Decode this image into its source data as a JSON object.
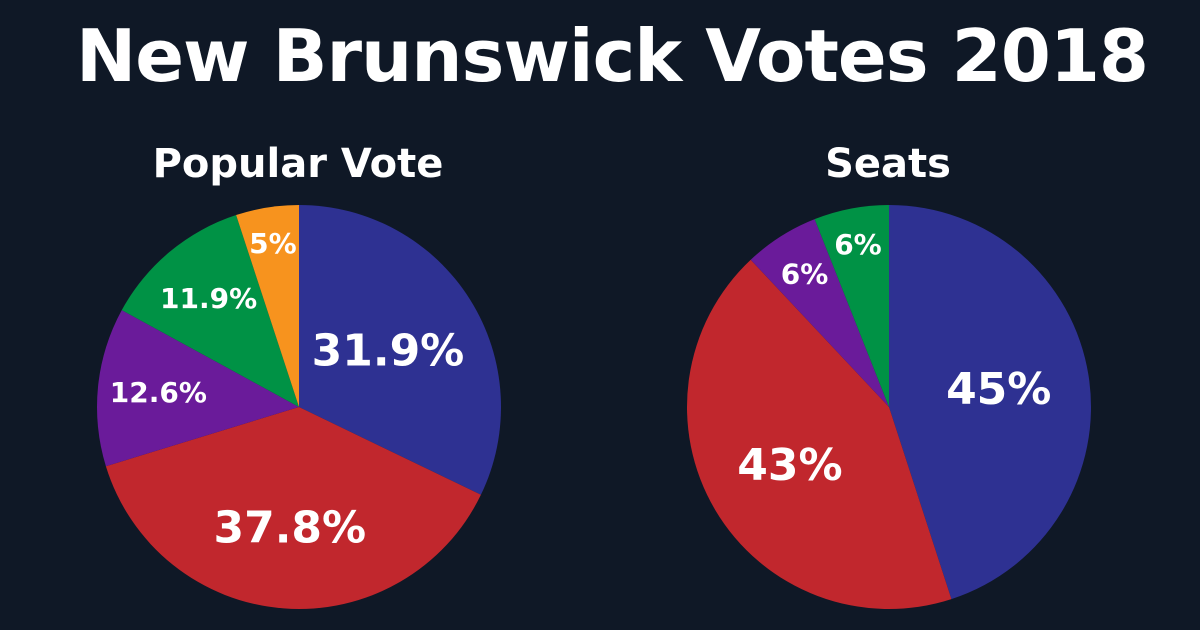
{
  "title": "New Brunswick Votes 2018",
  "chart_data": [
    {
      "type": "pie",
      "title": "Popular Vote",
      "slices": [
        {
          "label": "31.9%",
          "value": 31.9,
          "color": "#2e3192"
        },
        {
          "label": "37.8%",
          "value": 37.8,
          "color": "#c1272d"
        },
        {
          "label": "12.6%",
          "value": 12.6,
          "color": "#6a1b9a"
        },
        {
          "label": "11.9%",
          "value": 11.9,
          "color": "#009245"
        },
        {
          "label": "5%",
          "value": 5.0,
          "color": "#f7931e"
        }
      ]
    },
    {
      "type": "pie",
      "title": "Seats",
      "slices": [
        {
          "label": "45%",
          "value": 45,
          "color": "#2e3192"
        },
        {
          "label": "43%",
          "value": 43,
          "color": "#c1272d"
        },
        {
          "label": "6%",
          "value": 6,
          "color": "#6a1b9a"
        },
        {
          "label": "6%",
          "value": 6,
          "color": "#009245"
        }
      ]
    }
  ]
}
